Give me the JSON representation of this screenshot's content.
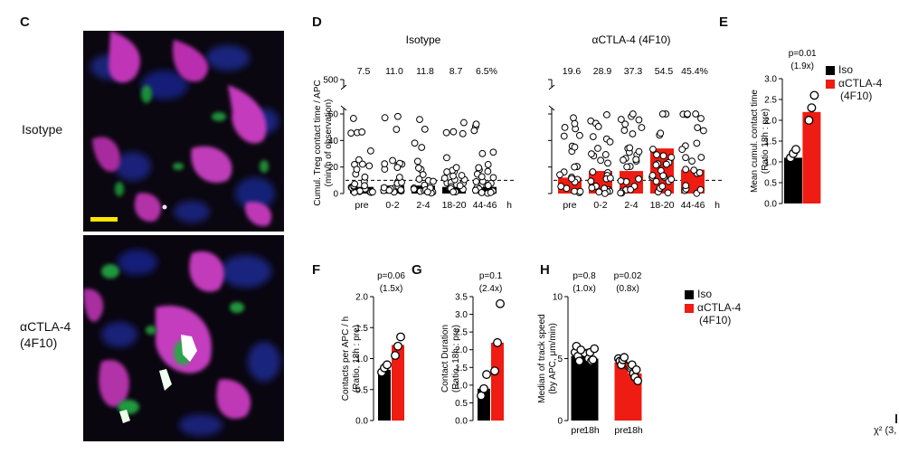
{
  "panels": {
    "C": {
      "letter": "C",
      "rows": [
        {
          "label_lines": [
            "Isotype"
          ]
        },
        {
          "label_lines": [
            "αCTLA-4",
            "(4F10)"
          ]
        }
      ]
    },
    "D": {
      "letter": "D",
      "group_titles": [
        "Isotype",
        "αCTLA-4 (4F10)"
      ],
      "percent_labels": {
        "Isotype": [
          "7.5",
          "11.0",
          "11.8",
          "8.7",
          "6.5%"
        ],
        "aCTLA4": [
          "19.6",
          "28.9",
          "37.3",
          "54.5",
          "45.4%"
        ]
      },
      "unit_suffix": "h"
    },
    "E": {
      "letter": "E",
      "p_value": "p=0.01",
      "fold": "(1.9x)",
      "legend": [
        {
          "label_lines": [
            "Iso"
          ],
          "color": "#000000"
        },
        {
          "label_lines": [
            "αCTLA-4",
            "(4F10)"
          ],
          "color": "#ee1c12"
        }
      ]
    },
    "F": {
      "letter": "F",
      "p_value": "p=0.06",
      "fold": "(1.5x)"
    },
    "G": {
      "letter": "G",
      "p_value": "p=0.1",
      "fold": "(2.4x)"
    },
    "H": {
      "letter": "H",
      "stats": [
        {
          "p_value": "p=0.8",
          "fold": "(1.0x)"
        },
        {
          "p_value": "p=0.02",
          "fold": "(0.8x)"
        }
      ],
      "legend": [
        {
          "label_lines": [
            "Iso"
          ],
          "color": "#000000"
        },
        {
          "label_lines": [
            "αCTLA-4",
            "(4F10)"
          ],
          "color": "#ee1c12"
        }
      ]
    }
  },
  "cropped_right_text": [
    "χ² (3,"
  ],
  "chart_data": [
    {
      "panel": "D",
      "type": "scatter",
      "title": "",
      "ylabel": "Cumul. Treg contact time / APC (min/h of observation)",
      "xlabel": "h",
      "categories": [
        "pre",
        "0-2",
        "2-4",
        "18-20",
        "44-46"
      ],
      "y_ticks": [
        0,
        20,
        40,
        60,
        500
      ],
      "y_axis_break": [
        60,
        500
      ],
      "dashed_reference": 10,
      "series": [
        {
          "name": "Isotype",
          "bar_values": [
            5,
            6,
            6,
            5,
            5
          ],
          "bar_color": "#000000"
        },
        {
          "name": "αCTLA-4 (4F10)",
          "bar_values": [
            12,
            17,
            17,
            34,
            18
          ],
          "bar_color": "#ee1c12"
        }
      ],
      "percent_labels": {
        "Isotype": [
          7.5,
          11.0,
          11.8,
          8.7,
          6.5
        ],
        "αCTLA-4 (4F10)": [
          19.6,
          28.9,
          37.3,
          54.5,
          45.4
        ]
      }
    },
    {
      "panel": "E",
      "type": "bar",
      "ylabel": "Mean cumul. contact time (Ratio 18h : pre)",
      "categories": [
        "Iso",
        "αCTLA-4 (4F10)"
      ],
      "values": [
        1.1,
        2.2
      ],
      "points": [
        [
          1.1,
          1.2,
          1.3
        ],
        [
          2.0,
          2.3,
          2.6
        ]
      ],
      "ylim": [
        0,
        3.0
      ],
      "y_ticks": [
        0,
        0.5,
        1.0,
        1.5,
        2.0,
        2.5,
        3.0
      ],
      "colors": [
        "#000000",
        "#ee1c12"
      ]
    },
    {
      "panel": "F",
      "type": "bar",
      "ylabel": "Contacts per APC / h (Ratio, 18h : pre)",
      "categories": [
        "Iso",
        "αCTLA-4 (4F10)"
      ],
      "values": [
        0.82,
        1.22
      ],
      "points": [
        [
          0.78,
          0.85,
          0.9
        ],
        [
          1.05,
          1.2,
          1.35
        ]
      ],
      "ylim": [
        0,
        2.0
      ],
      "y_ticks": [
        0,
        0.5,
        1.0,
        1.5,
        2.0
      ],
      "colors": [
        "#000000",
        "#ee1c12"
      ]
    },
    {
      "panel": "G",
      "type": "bar",
      "ylabel": "Contact Duration (Ratio, 18h : pre)",
      "categories": [
        "Iso",
        "αCTLA-4 (4F10)"
      ],
      "values": [
        0.9,
        2.2
      ],
      "points": [
        [
          0.7,
          0.9,
          1.3
        ],
        [
          1.4,
          2.2,
          3.3
        ]
      ],
      "ylim": [
        0,
        3.5
      ],
      "y_ticks": [
        0,
        0.5,
        1.0,
        1.5,
        2.0,
        2.5,
        3.0,
        3.5
      ],
      "colors": [
        "#000000",
        "#ee1c12"
      ]
    },
    {
      "panel": "H",
      "type": "bar",
      "ylabel": "Median of track speed (by APC, μm/min)",
      "categories": [
        "pre",
        "18h",
        "pre",
        "18h"
      ],
      "groups": [
        "Iso",
        "αCTLA-4 (4F10)"
      ],
      "values": [
        5.2,
        5.0,
        4.7,
        3.8
      ],
      "paired_points": [
        [
          [
            5.5,
            5.0
          ],
          [
            6.0,
            5.5
          ],
          [
            5.2,
            4.8
          ],
          [
            4.8,
            4.9
          ],
          [
            5.7,
            5.8
          ]
        ],
        [
          [
            5.0,
            4.5
          ],
          [
            4.8,
            3.8
          ],
          [
            4.5,
            3.5
          ],
          [
            4.9,
            4.1
          ],
          [
            5.1,
            3.2
          ]
        ]
      ],
      "ylim": [
        0,
        10
      ],
      "y_ticks": [
        0,
        5,
        10
      ],
      "x_tick_labels": [
        "pre",
        "18h",
        "pre",
        "18h"
      ],
      "colors": [
        "#000000",
        "#ee1c12"
      ]
    }
  ]
}
